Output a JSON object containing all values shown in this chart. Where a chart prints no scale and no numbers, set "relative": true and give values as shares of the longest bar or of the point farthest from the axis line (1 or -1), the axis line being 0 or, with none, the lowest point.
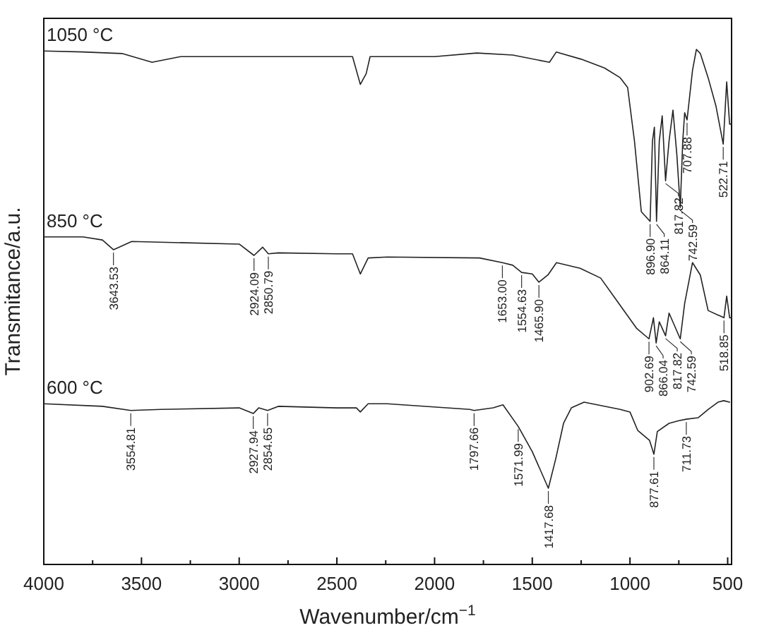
{
  "chart_data": {
    "type": "line",
    "relative": true,
    "xlabel": "Wavenumber/cm$^{−1}$",
    "ylabel": "Transmitance/a.u.",
    "xlim": [
      4000,
      480
    ],
    "xticks": [
      4000,
      {
        "value": 3750,
        "label": null
      },
      3500,
      {
        "value": 3250,
        "label": null
      },
      3000,
      {
        "value": 2750,
        "label": null
      },
      2500,
      {
        "value": 2250,
        "label": null
      },
      2000,
      {
        "value": 1750,
        "label": null
      },
      1500,
      {
        "value": 1250,
        "label": null
      },
      1000,
      {
        "value": 750,
        "label": null
      },
      500
    ],
    "marker": "none",
    "line_style": "solid",
    "series": [
      {
        "name": "1050 °C",
        "color": "#222222",
        "x": [
          4000,
          3800,
          3600,
          3446,
          3300,
          2800,
          2420,
          2380,
          2350,
          2330,
          2000,
          1784,
          1600,
          1412,
          1377,
          1250,
          1131,
          1050,
          1012,
          977,
          942,
          896.9,
          885,
          875,
          864.11,
          850,
          835,
          817.82,
          800,
          780,
          760,
          742.59,
          730,
          720,
          707.88,
          680,
          660,
          640,
          600,
          560,
          522.71,
          505,
          490,
          480
        ],
        "values": [
          0.997,
          0.995,
          0.992,
          0.975,
          0.986,
          0.986,
          0.986,
          0.932,
          0.953,
          0.986,
          0.986,
          0.993,
          0.989,
          0.975,
          0.995,
          0.981,
          0.964,
          0.945,
          0.926,
          0.822,
          0.685,
          0.666,
          0.822,
          0.849,
          0.666,
          0.822,
          0.871,
          0.745,
          0.822,
          0.882,
          0.795,
          0.693,
          0.822,
          0.877,
          0.863,
          0.959,
          1,
          0.992,
          0.945,
          0.89,
          0.816,
          0.937,
          0.855,
          0.855
        ]
      },
      {
        "name": "850 °C",
        "color": "#222222",
        "x": [
          4000,
          3800,
          3700,
          3643.53,
          3550,
          3000,
          2924.09,
          2880,
          2850.79,
          2800,
          2500,
          2420,
          2380,
          2340,
          2242,
          1770,
          1653,
          1600,
          1554.63,
          1500,
          1465.9,
          1420,
          1376,
          1255,
          1150,
          1067,
          965,
          902.69,
          880,
          866.04,
          850,
          817.82,
          800,
          742.59,
          720,
          680,
          640,
          600,
          518.85,
          505,
          490,
          480
        ],
        "values": [
          0.636,
          0.636,
          0.63,
          0.611,
          0.627,
          0.622,
          0.6,
          0.616,
          0.603,
          0.605,
          0.603,
          0.603,
          0.564,
          0.595,
          0.597,
          0.595,
          0.586,
          0.581,
          0.567,
          0.564,
          0.548,
          0.562,
          0.586,
          0.575,
          0.556,
          0.512,
          0.458,
          0.438,
          0.479,
          0.43,
          0.471,
          0.444,
          0.488,
          0.438,
          0.507,
          0.586,
          0.562,
          0.493,
          0.479,
          0.521,
          0.479,
          0.479
        ]
      },
      {
        "name": "600 °C",
        "color": "#222222",
        "x": [
          4000,
          3700,
          3554.81,
          3400,
          3000,
          2927.94,
          2900,
          2854.65,
          2800,
          2500,
          2400,
          2380,
          2340,
          2243,
          1820,
          1797.66,
          1700,
          1650,
          1571.99,
          1500,
          1417.68,
          1380,
          1340,
          1300,
          1235,
          1050,
          1000,
          960,
          900,
          877.61,
          860,
          800,
          750,
          711.73,
          650,
          600,
          550,
          520,
          490
        ],
        "values": [
          0.312,
          0.307,
          0.299,
          0.301,
          0.304,
          0.293,
          0.304,
          0.299,
          0.307,
          0.304,
          0.304,
          0.296,
          0.312,
          0.312,
          0.301,
          0.299,
          0.304,
          0.31,
          0.268,
          0.219,
          0.148,
          0.205,
          0.274,
          0.304,
          0.315,
          0.301,
          0.296,
          0.26,
          0.241,
          0.214,
          0.258,
          0.274,
          0.279,
          0.282,
          0.285,
          0.301,
          0.315,
          0.318,
          0.315
        ]
      }
    ],
    "annotations": [
      {
        "text": "896.90",
        "x": 896.9,
        "y": 0.666
      },
      {
        "text": "864.11",
        "x": 864.11,
        "y": 0.666
      },
      {
        "text": "817.82",
        "x": 817.82,
        "y": 0.745
      },
      {
        "text": "742.59",
        "x": 742.59,
        "y": 0.693
      },
      {
        "text": "707.88",
        "x": 707.88,
        "y": 0.863
      },
      {
        "text": "522.71",
        "x": 522.71,
        "y": 0.816
      },
      {
        "text": "3643.53",
        "x": 3643.53,
        "y": 0.611
      },
      {
        "text": "2924.09",
        "x": 2924.09,
        "y": 0.6
      },
      {
        "text": "2850.79",
        "x": 2850.79,
        "y": 0.603
      },
      {
        "text": "1653.00",
        "x": 1653,
        "y": 0.586
      },
      {
        "text": "1554.63",
        "x": 1554.63,
        "y": 0.567
      },
      {
        "text": "1465.90",
        "x": 1465.9,
        "y": 0.548
      },
      {
        "text": "902.69",
        "x": 902.69,
        "y": 0.438
      },
      {
        "text": "866.04",
        "x": 866.04,
        "y": 0.43
      },
      {
        "text": "817.82",
        "x": 817.82,
        "y": 0.444
      },
      {
        "text": "742.59",
        "x": 742.59,
        "y": 0.438
      },
      {
        "text": "518.85",
        "x": 518.85,
        "y": 0.479
      },
      {
        "text": "3554.81",
        "x": 3554.81,
        "y": 0.299
      },
      {
        "text": "2927.94",
        "x": 2927.94,
        "y": 0.293
      },
      {
        "text": "2854.65",
        "x": 2854.65,
        "y": 0.299
      },
      {
        "text": "1797.66",
        "x": 1797.66,
        "y": 0.299
      },
      {
        "text": "1571.99",
        "x": 1571.99,
        "y": 0.268
      },
      {
        "text": "1417.68",
        "x": 1417.68,
        "y": 0.148
      },
      {
        "text": "877.61",
        "x": 877.61,
        "y": 0.214
      },
      {
        "text": "711.73",
        "x": 711.73,
        "y": 0.282
      }
    ]
  }
}
